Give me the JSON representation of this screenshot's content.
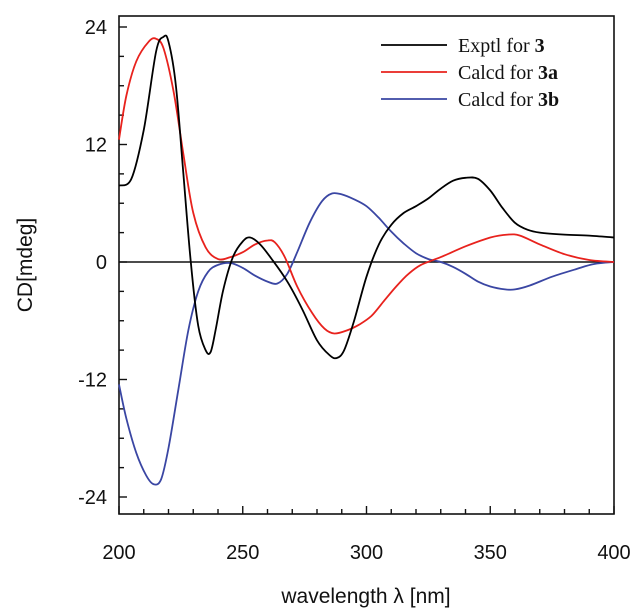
{
  "chart_data": {
    "type": "line",
    "title": "",
    "xlabel": "wavelength λ [nm]",
    "ylabel": "CD[mdeg]",
    "xlim": [
      200,
      400
    ],
    "ylim": [
      -25,
      25
    ],
    "xticks": [
      200,
      250,
      300,
      350,
      400
    ],
    "yticks": [
      -24,
      -12,
      0,
      12,
      24
    ],
    "grid": false,
    "zero_line": true,
    "legend_position": "top-right",
    "series": [
      {
        "name": "Exptl for 3",
        "label_text": "Exptl for ",
        "label_bold": "3",
        "color": "#000000",
        "points": [
          [
            200,
            7.8
          ],
          [
            205,
            8.5
          ],
          [
            210,
            13.5
          ],
          [
            215,
            21.5
          ],
          [
            218,
            23.0
          ],
          [
            220,
            22.5
          ],
          [
            223,
            18
          ],
          [
            226,
            9
          ],
          [
            229,
            0
          ],
          [
            232,
            -6.5
          ],
          [
            235,
            -9.0
          ],
          [
            237,
            -9.2
          ],
          [
            239,
            -7
          ],
          [
            242,
            -3
          ],
          [
            246,
            0.5
          ],
          [
            250,
            2.1
          ],
          [
            253,
            2.5
          ],
          [
            257,
            1.8
          ],
          [
            262,
            0.2
          ],
          [
            268,
            -2.0
          ],
          [
            274,
            -4.8
          ],
          [
            280,
            -8.0
          ],
          [
            285,
            -9.5
          ],
          [
            288,
            -9.8
          ],
          [
            291,
            -9.0
          ],
          [
            295,
            -6.0
          ],
          [
            300,
            -1.5
          ],
          [
            305,
            1.8
          ],
          [
            310,
            3.8
          ],
          [
            315,
            5.0
          ],
          [
            320,
            5.7
          ],
          [
            325,
            6.5
          ],
          [
            330,
            7.5
          ],
          [
            335,
            8.3
          ],
          [
            340,
            8.6
          ],
          [
            345,
            8.5
          ],
          [
            350,
            7.3
          ],
          [
            355,
            5.5
          ],
          [
            360,
            4.0
          ],
          [
            365,
            3.3
          ],
          [
            370,
            3.0
          ],
          [
            380,
            2.8
          ],
          [
            390,
            2.7
          ],
          [
            400,
            2.5
          ]
        ]
      },
      {
        "name": "Calcd for 3a",
        "label_text": "Calcd for ",
        "label_bold": "3a",
        "color": "#e8221d",
        "points": [
          [
            200,
            12.5
          ],
          [
            203,
            17
          ],
          [
            207,
            20.5
          ],
          [
            212,
            22.5
          ],
          [
            215,
            22.8
          ],
          [
            218,
            21.8
          ],
          [
            222,
            17.5
          ],
          [
            226,
            11
          ],
          [
            230,
            5
          ],
          [
            235,
            1.5
          ],
          [
            240,
            0.3
          ],
          [
            245,
            0.5
          ],
          [
            250,
            1.0
          ],
          [
            255,
            1.8
          ],
          [
            260,
            2.2
          ],
          [
            263,
            2.0
          ],
          [
            267,
            0.5
          ],
          [
            272,
            -2.5
          ],
          [
            278,
            -5.2
          ],
          [
            283,
            -6.8
          ],
          [
            287,
            -7.3
          ],
          [
            292,
            -7.0
          ],
          [
            297,
            -6.4
          ],
          [
            302,
            -5.5
          ],
          [
            307,
            -4.0
          ],
          [
            312,
            -2.5
          ],
          [
            317,
            -1.2
          ],
          [
            322,
            -0.3
          ],
          [
            330,
            0.5
          ],
          [
            340,
            1.6
          ],
          [
            350,
            2.5
          ],
          [
            357,
            2.8
          ],
          [
            362,
            2.7
          ],
          [
            370,
            1.8
          ],
          [
            380,
            0.8
          ],
          [
            390,
            0.2
          ],
          [
            400,
            0.0
          ]
        ]
      },
      {
        "name": "Calcd for 3b",
        "label_text": "Calcd for ",
        "label_bold": "3b",
        "color": "#3a46a3",
        "points": [
          [
            200,
            -12.5
          ],
          [
            203,
            -16
          ],
          [
            207,
            -19.5
          ],
          [
            211,
            -21.8
          ],
          [
            214,
            -22.7
          ],
          [
            217,
            -22.2
          ],
          [
            220,
            -19
          ],
          [
            224,
            -13
          ],
          [
            228,
            -7
          ],
          [
            232,
            -3
          ],
          [
            236,
            -1.0
          ],
          [
            240,
            -0.3
          ],
          [
            245,
            -0.1
          ],
          [
            250,
            -0.6
          ],
          [
            255,
            -1.4
          ],
          [
            260,
            -2.0
          ],
          [
            264,
            -2.2
          ],
          [
            268,
            -1.2
          ],
          [
            272,
            1.0
          ],
          [
            277,
            4.0
          ],
          [
            282,
            6.2
          ],
          [
            286,
            7.0
          ],
          [
            290,
            6.9
          ],
          [
            295,
            6.4
          ],
          [
            300,
            5.7
          ],
          [
            305,
            4.5
          ],
          [
            310,
            3.1
          ],
          [
            315,
            1.9
          ],
          [
            320,
            0.9
          ],
          [
            325,
            0.3
          ],
          [
            330,
            0.0
          ],
          [
            335,
            -0.5
          ],
          [
            340,
            -1.2
          ],
          [
            345,
            -2.0
          ],
          [
            350,
            -2.5
          ],
          [
            356,
            -2.8
          ],
          [
            360,
            -2.8
          ],
          [
            366,
            -2.4
          ],
          [
            375,
            -1.5
          ],
          [
            385,
            -0.7
          ],
          [
            392,
            -0.2
          ],
          [
            400,
            0.0
          ]
        ]
      }
    ]
  }
}
